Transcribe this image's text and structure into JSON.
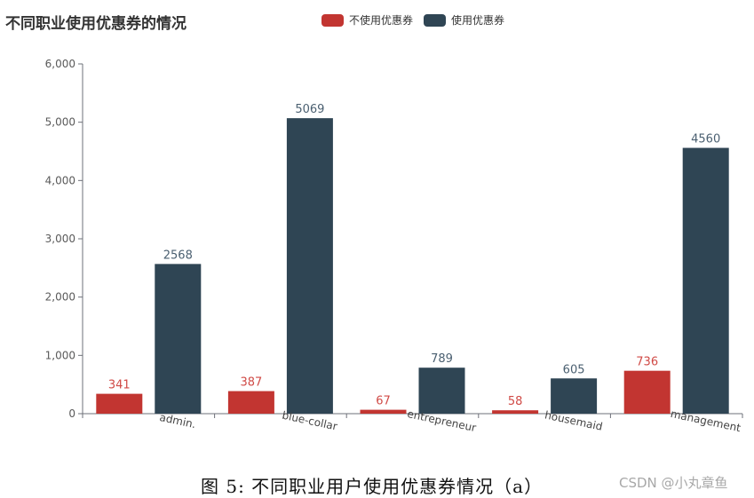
{
  "chart_data": {
    "type": "bar",
    "title": "不同职业使用优惠券的情况",
    "categories": [
      "admin.",
      "blue-collar",
      "entrepreneur",
      "housemaid",
      "management"
    ],
    "series": [
      {
        "name": "不使用优惠券",
        "values": [
          341,
          387,
          67,
          58,
          736
        ],
        "color": "#c23531"
      },
      {
        "name": "使用优惠券",
        "values": [
          2568,
          5069,
          789,
          605,
          4560
        ],
        "color": "#2f4554"
      }
    ],
    "ylim": [
      0,
      6000
    ],
    "yticks": [
      "0",
      "1,000",
      "2,000",
      "3,000",
      "4,000",
      "5,000",
      "6,000"
    ],
    "grid": false,
    "legend_position": "top"
  },
  "caption": "图 5: 不同职业用户使用优惠券情况（a）",
  "watermark": "CSDN @小丸章鱼"
}
